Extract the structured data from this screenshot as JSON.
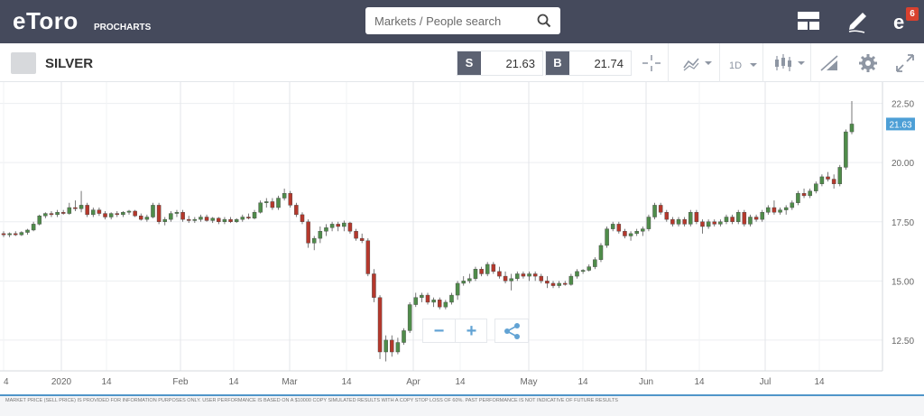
{
  "header": {
    "logo": "eToro",
    "logo_sub": "PROCHARTS",
    "search_placeholder": "Markets / People search",
    "notification_count": "6",
    "icons": [
      "layout-icon",
      "edit-icon",
      "etoro-notification-icon"
    ]
  },
  "instrument": {
    "name": "SILVER",
    "sell_label": "S",
    "sell_price": "21.63",
    "buy_label": "B",
    "buy_price": "21.74",
    "timeframe": "1D"
  },
  "colors": {
    "up": "#4f8c4a",
    "down": "#b5382c",
    "price_tag": "#4d9fd6",
    "header_bg": "#454a5c",
    "accent": "#4f95c9"
  },
  "chart_data": {
    "type": "candlestick",
    "title": "",
    "y_ticks": [
      "22.50",
      "20.00",
      "17.50",
      "15.00",
      "12.50"
    ],
    "y_range": [
      11.2,
      23.4
    ],
    "current_price": "21.63",
    "x_labels": [
      "4",
      "2020",
      "14",
      "Feb",
      "14",
      "Mar",
      "14",
      "Apr",
      "14",
      "May",
      "14",
      "Jun",
      "14",
      "Jul",
      "14"
    ],
    "candles": [
      {
        "o": 17.0,
        "h": 17.1,
        "l": 16.85,
        "c": 16.95
      },
      {
        "o": 16.95,
        "h": 17.05,
        "l": 16.85,
        "c": 17.0
      },
      {
        "o": 17.0,
        "h": 17.1,
        "l": 16.9,
        "c": 16.95
      },
      {
        "o": 16.95,
        "h": 17.1,
        "l": 16.9,
        "c": 17.05
      },
      {
        "o": 17.05,
        "h": 17.2,
        "l": 16.95,
        "c": 17.15
      },
      {
        "o": 17.15,
        "h": 17.5,
        "l": 17.1,
        "c": 17.4
      },
      {
        "o": 17.4,
        "h": 17.8,
        "l": 17.35,
        "c": 17.75
      },
      {
        "o": 17.75,
        "h": 17.9,
        "l": 17.65,
        "c": 17.85
      },
      {
        "o": 17.85,
        "h": 17.95,
        "l": 17.7,
        "c": 17.8
      },
      {
        "o": 17.8,
        "h": 18.0,
        "l": 17.7,
        "c": 17.9
      },
      {
        "o": 17.9,
        "h": 18.0,
        "l": 17.8,
        "c": 17.85
      },
      {
        "o": 17.85,
        "h": 18.3,
        "l": 17.8,
        "c": 18.1
      },
      {
        "o": 18.1,
        "h": 18.4,
        "l": 17.95,
        "c": 18.05
      },
      {
        "o": 18.05,
        "h": 18.8,
        "l": 17.9,
        "c": 18.2
      },
      {
        "o": 18.2,
        "h": 18.3,
        "l": 17.7,
        "c": 17.8
      },
      {
        "o": 17.8,
        "h": 18.1,
        "l": 17.7,
        "c": 18.0
      },
      {
        "o": 18.0,
        "h": 18.1,
        "l": 17.75,
        "c": 17.85
      },
      {
        "o": 17.85,
        "h": 17.95,
        "l": 17.6,
        "c": 17.7
      },
      {
        "o": 17.7,
        "h": 17.9,
        "l": 17.6,
        "c": 17.85
      },
      {
        "o": 17.85,
        "h": 17.95,
        "l": 17.7,
        "c": 17.8
      },
      {
        "o": 17.8,
        "h": 17.95,
        "l": 17.7,
        "c": 17.9
      },
      {
        "o": 17.9,
        "h": 18.0,
        "l": 17.8,
        "c": 17.95
      },
      {
        "o": 17.95,
        "h": 18.0,
        "l": 17.7,
        "c": 17.75
      },
      {
        "o": 17.75,
        "h": 17.85,
        "l": 17.55,
        "c": 17.6
      },
      {
        "o": 17.6,
        "h": 17.8,
        "l": 17.5,
        "c": 17.7
      },
      {
        "o": 17.7,
        "h": 18.3,
        "l": 17.65,
        "c": 18.2
      },
      {
        "o": 18.2,
        "h": 18.3,
        "l": 17.4,
        "c": 17.5
      },
      {
        "o": 17.5,
        "h": 17.7,
        "l": 17.35,
        "c": 17.6
      },
      {
        "o": 17.6,
        "h": 17.95,
        "l": 17.5,
        "c": 17.85
      },
      {
        "o": 17.85,
        "h": 18.0,
        "l": 17.7,
        "c": 17.9
      },
      {
        "o": 17.9,
        "h": 18.0,
        "l": 17.5,
        "c": 17.6
      },
      {
        "o": 17.6,
        "h": 17.75,
        "l": 17.45,
        "c": 17.55
      },
      {
        "o": 17.55,
        "h": 17.7,
        "l": 17.45,
        "c": 17.6
      },
      {
        "o": 17.6,
        "h": 17.8,
        "l": 17.5,
        "c": 17.7
      },
      {
        "o": 17.7,
        "h": 17.8,
        "l": 17.5,
        "c": 17.55
      },
      {
        "o": 17.55,
        "h": 17.7,
        "l": 17.45,
        "c": 17.65
      },
      {
        "o": 17.65,
        "h": 17.7,
        "l": 17.4,
        "c": 17.5
      },
      {
        "o": 17.5,
        "h": 17.7,
        "l": 17.4,
        "c": 17.6
      },
      {
        "o": 17.6,
        "h": 17.7,
        "l": 17.45,
        "c": 17.5
      },
      {
        "o": 17.5,
        "h": 17.65,
        "l": 17.45,
        "c": 17.6
      },
      {
        "o": 17.6,
        "h": 17.8,
        "l": 17.5,
        "c": 17.7
      },
      {
        "o": 17.7,
        "h": 17.85,
        "l": 17.6,
        "c": 17.65
      },
      {
        "o": 17.65,
        "h": 18.0,
        "l": 17.6,
        "c": 17.9
      },
      {
        "o": 17.9,
        "h": 18.4,
        "l": 17.85,
        "c": 18.3
      },
      {
        "o": 18.3,
        "h": 18.5,
        "l": 18.1,
        "c": 18.35
      },
      {
        "o": 18.35,
        "h": 18.5,
        "l": 18.0,
        "c": 18.1
      },
      {
        "o": 18.1,
        "h": 18.6,
        "l": 18.0,
        "c": 18.5
      },
      {
        "o": 18.5,
        "h": 18.9,
        "l": 18.4,
        "c": 18.7
      },
      {
        "o": 18.7,
        "h": 18.8,
        "l": 18.1,
        "c": 18.2
      },
      {
        "o": 18.2,
        "h": 18.3,
        "l": 17.7,
        "c": 17.8
      },
      {
        "o": 17.8,
        "h": 17.9,
        "l": 17.4,
        "c": 17.5
      },
      {
        "o": 17.5,
        "h": 17.6,
        "l": 16.4,
        "c": 16.6
      },
      {
        "o": 16.6,
        "h": 16.9,
        "l": 16.3,
        "c": 16.8
      },
      {
        "o": 16.8,
        "h": 17.3,
        "l": 16.6,
        "c": 17.1
      },
      {
        "o": 17.1,
        "h": 17.4,
        "l": 16.9,
        "c": 17.25
      },
      {
        "o": 17.25,
        "h": 17.5,
        "l": 17.1,
        "c": 17.4
      },
      {
        "o": 17.4,
        "h": 17.5,
        "l": 17.1,
        "c": 17.3
      },
      {
        "o": 17.3,
        "h": 17.55,
        "l": 17.1,
        "c": 17.45
      },
      {
        "o": 17.45,
        "h": 17.5,
        "l": 17.0,
        "c": 17.1
      },
      {
        "o": 17.1,
        "h": 17.2,
        "l": 16.7,
        "c": 16.8
      },
      {
        "o": 16.8,
        "h": 17.0,
        "l": 16.6,
        "c": 16.7
      },
      {
        "o": 16.7,
        "h": 16.8,
        "l": 15.2,
        "c": 15.3
      },
      {
        "o": 15.3,
        "h": 15.5,
        "l": 14.1,
        "c": 14.3
      },
      {
        "o": 14.3,
        "h": 14.4,
        "l": 11.7,
        "c": 12.0
      },
      {
        "o": 12.0,
        "h": 12.7,
        "l": 11.6,
        "c": 12.5
      },
      {
        "o": 12.5,
        "h": 12.7,
        "l": 11.8,
        "c": 12.0
      },
      {
        "o": 12.0,
        "h": 12.6,
        "l": 11.9,
        "c": 12.4
      },
      {
        "o": 12.4,
        "h": 13.0,
        "l": 12.3,
        "c": 12.9
      },
      {
        "o": 12.9,
        "h": 14.1,
        "l": 12.8,
        "c": 14.0
      },
      {
        "o": 14.0,
        "h": 14.5,
        "l": 13.9,
        "c": 14.3
      },
      {
        "o": 14.3,
        "h": 14.5,
        "l": 14.1,
        "c": 14.4
      },
      {
        "o": 14.4,
        "h": 14.5,
        "l": 14.0,
        "c": 14.1
      },
      {
        "o": 14.1,
        "h": 14.3,
        "l": 13.9,
        "c": 14.2
      },
      {
        "o": 14.2,
        "h": 14.3,
        "l": 13.8,
        "c": 13.9
      },
      {
        "o": 13.9,
        "h": 14.2,
        "l": 13.8,
        "c": 14.1
      },
      {
        "o": 14.1,
        "h": 14.5,
        "l": 14.0,
        "c": 14.4
      },
      {
        "o": 14.4,
        "h": 15.0,
        "l": 14.2,
        "c": 14.9
      },
      {
        "o": 14.9,
        "h": 15.2,
        "l": 14.8,
        "c": 15.0
      },
      {
        "o": 15.0,
        "h": 15.3,
        "l": 14.9,
        "c": 15.1
      },
      {
        "o": 15.1,
        "h": 15.6,
        "l": 15.0,
        "c": 15.5
      },
      {
        "o": 15.5,
        "h": 15.6,
        "l": 15.2,
        "c": 15.3
      },
      {
        "o": 15.3,
        "h": 15.8,
        "l": 15.2,
        "c": 15.7
      },
      {
        "o": 15.7,
        "h": 15.8,
        "l": 15.3,
        "c": 15.4
      },
      {
        "o": 15.4,
        "h": 15.6,
        "l": 15.1,
        "c": 15.2
      },
      {
        "o": 15.2,
        "h": 15.4,
        "l": 14.9,
        "c": 15.0
      },
      {
        "o": 15.0,
        "h": 15.3,
        "l": 14.6,
        "c": 15.1
      },
      {
        "o": 15.1,
        "h": 15.4,
        "l": 15.0,
        "c": 15.3
      },
      {
        "o": 15.3,
        "h": 15.4,
        "l": 15.1,
        "c": 15.2
      },
      {
        "o": 15.2,
        "h": 15.4,
        "l": 15.0,
        "c": 15.3
      },
      {
        "o": 15.3,
        "h": 15.4,
        "l": 15.0,
        "c": 15.2
      },
      {
        "o": 15.2,
        "h": 15.3,
        "l": 14.9,
        "c": 15.0
      },
      {
        "o": 15.0,
        "h": 15.2,
        "l": 14.7,
        "c": 14.9
      },
      {
        "o": 14.9,
        "h": 15.0,
        "l": 14.7,
        "c": 14.8
      },
      {
        "o": 14.8,
        "h": 15.0,
        "l": 14.7,
        "c": 14.9
      },
      {
        "o": 14.9,
        "h": 15.0,
        "l": 14.8,
        "c": 14.85
      },
      {
        "o": 14.85,
        "h": 15.3,
        "l": 14.8,
        "c": 15.2
      },
      {
        "o": 15.2,
        "h": 15.5,
        "l": 15.1,
        "c": 15.4
      },
      {
        "o": 15.4,
        "h": 15.5,
        "l": 15.3,
        "c": 15.45
      },
      {
        "o": 15.45,
        "h": 15.7,
        "l": 15.4,
        "c": 15.6
      },
      {
        "o": 15.6,
        "h": 16.0,
        "l": 15.5,
        "c": 15.9
      },
      {
        "o": 15.9,
        "h": 16.6,
        "l": 15.8,
        "c": 16.5
      },
      {
        "o": 16.5,
        "h": 17.3,
        "l": 16.4,
        "c": 17.2
      },
      {
        "o": 17.2,
        "h": 17.5,
        "l": 17.1,
        "c": 17.4
      },
      {
        "o": 17.4,
        "h": 17.5,
        "l": 17.0,
        "c": 17.1
      },
      {
        "o": 17.1,
        "h": 17.2,
        "l": 16.8,
        "c": 16.9
      },
      {
        "o": 16.9,
        "h": 17.1,
        "l": 16.7,
        "c": 17.0
      },
      {
        "o": 17.0,
        "h": 17.2,
        "l": 16.9,
        "c": 17.1
      },
      {
        "o": 17.1,
        "h": 17.3,
        "l": 16.9,
        "c": 17.2
      },
      {
        "o": 17.2,
        "h": 17.8,
        "l": 17.1,
        "c": 17.7
      },
      {
        "o": 17.7,
        "h": 18.3,
        "l": 17.6,
        "c": 18.2
      },
      {
        "o": 18.2,
        "h": 18.3,
        "l": 17.8,
        "c": 17.9
      },
      {
        "o": 17.9,
        "h": 18.0,
        "l": 17.5,
        "c": 17.6
      },
      {
        "o": 17.6,
        "h": 17.7,
        "l": 17.3,
        "c": 17.4
      },
      {
        "o": 17.4,
        "h": 17.7,
        "l": 17.3,
        "c": 17.6
      },
      {
        "o": 17.6,
        "h": 17.7,
        "l": 17.3,
        "c": 17.4
      },
      {
        "o": 17.4,
        "h": 18.0,
        "l": 17.3,
        "c": 17.9
      },
      {
        "o": 17.9,
        "h": 18.0,
        "l": 17.4,
        "c": 17.5
      },
      {
        "o": 17.5,
        "h": 17.6,
        "l": 17.0,
        "c": 17.3
      },
      {
        "o": 17.3,
        "h": 17.6,
        "l": 17.2,
        "c": 17.5
      },
      {
        "o": 17.5,
        "h": 17.6,
        "l": 17.3,
        "c": 17.4
      },
      {
        "o": 17.4,
        "h": 17.6,
        "l": 17.3,
        "c": 17.5
      },
      {
        "o": 17.5,
        "h": 17.8,
        "l": 17.4,
        "c": 17.7
      },
      {
        "o": 17.7,
        "h": 17.8,
        "l": 17.4,
        "c": 17.5
      },
      {
        "o": 17.5,
        "h": 18.0,
        "l": 17.4,
        "c": 17.9
      },
      {
        "o": 17.9,
        "h": 18.0,
        "l": 17.3,
        "c": 17.4
      },
      {
        "o": 17.4,
        "h": 17.8,
        "l": 17.3,
        "c": 17.7
      },
      {
        "o": 17.7,
        "h": 17.8,
        "l": 17.5,
        "c": 17.6
      },
      {
        "o": 17.6,
        "h": 18.0,
        "l": 17.5,
        "c": 17.9
      },
      {
        "o": 17.9,
        "h": 18.2,
        "l": 17.8,
        "c": 18.1
      },
      {
        "o": 18.1,
        "h": 18.4,
        "l": 17.8,
        "c": 17.9
      },
      {
        "o": 17.9,
        "h": 18.1,
        "l": 17.8,
        "c": 18.0
      },
      {
        "o": 18.0,
        "h": 18.2,
        "l": 17.8,
        "c": 18.1
      },
      {
        "o": 18.1,
        "h": 18.4,
        "l": 18.0,
        "c": 18.3
      },
      {
        "o": 18.3,
        "h": 18.8,
        "l": 18.2,
        "c": 18.7
      },
      {
        "o": 18.7,
        "h": 18.9,
        "l": 18.5,
        "c": 18.6
      },
      {
        "o": 18.6,
        "h": 18.9,
        "l": 18.5,
        "c": 18.8
      },
      {
        "o": 18.8,
        "h": 19.2,
        "l": 18.7,
        "c": 19.1
      },
      {
        "o": 19.1,
        "h": 19.5,
        "l": 19.0,
        "c": 19.4
      },
      {
        "o": 19.4,
        "h": 19.6,
        "l": 19.2,
        "c": 19.3
      },
      {
        "o": 19.3,
        "h": 19.5,
        "l": 18.9,
        "c": 19.1
      },
      {
        "o": 19.1,
        "h": 19.9,
        "l": 19.0,
        "c": 19.8
      },
      {
        "o": 19.8,
        "h": 21.4,
        "l": 19.7,
        "c": 21.3
      },
      {
        "o": 21.3,
        "h": 22.6,
        "l": 21.2,
        "c": 21.63
      }
    ]
  },
  "controls": {
    "zoom_out": "−",
    "zoom_in": "+"
  },
  "disclaimer": "MARKET PRICE (SELL PRICE) IS PROVIDED FOR INFORMATION PURPOSES ONLY. USER PERFORMANCE IS BASED ON A $10000 COPY SIMULATED RESULTS WITH A COPY STOP LOSS OF 60%. PAST PERFORMANCE IS NOT INDICATIVE OF FUTURE RESULTS"
}
